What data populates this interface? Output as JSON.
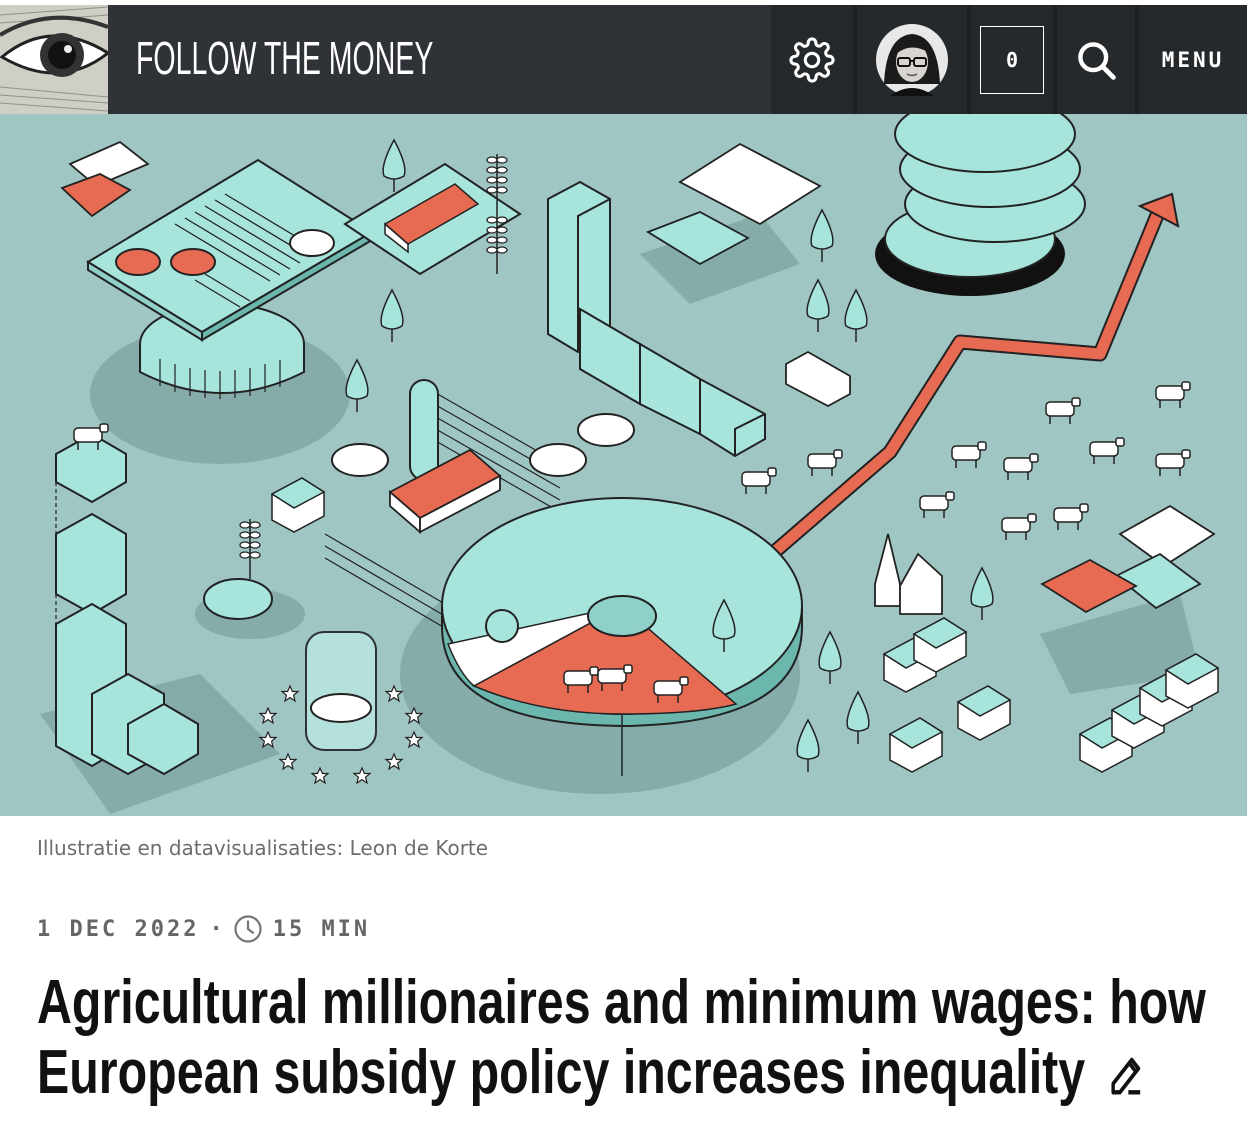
{
  "header": {
    "brand": "FOLLOW THE MONEY",
    "counter": "0",
    "menu_label": "MENU",
    "icons": [
      "eye-logo-icon",
      "gear-icon",
      "avatar",
      "search-icon"
    ]
  },
  "hero": {
    "credit": "Illustratie en datavisualisaties: Leon de Korte"
  },
  "article": {
    "date": "1 DEC 2022",
    "separator": "·",
    "read_time": "15 MIN",
    "title": "Agricultural millionaires and minimum wages: how European subsidy policy increases inequality",
    "icons": [
      "clock-icon",
      "edit-icon"
    ]
  },
  "colors": {
    "header_bg": "#2f3337",
    "hero_bg": "#9fc6c3",
    "accent_red": "#e76a52",
    "mint": "#a6e4dc"
  }
}
